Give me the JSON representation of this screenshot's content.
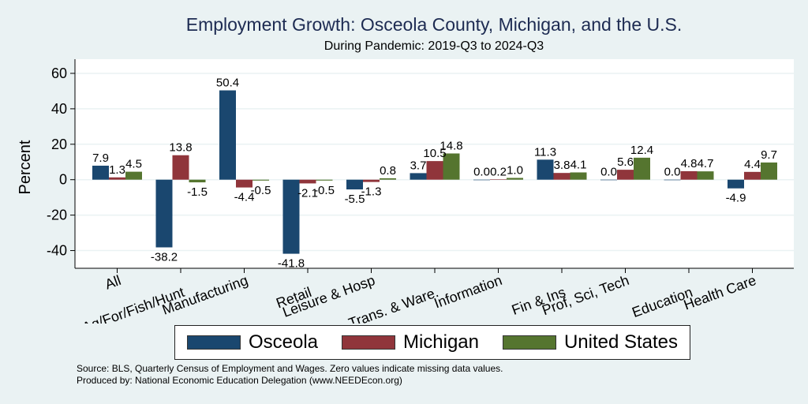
{
  "chart_data": {
    "type": "bar",
    "title": "Employment Growth: Osceola County, Michigan, and the U.S.",
    "subtitle": "During Pandemic: 2019-Q3 to 2024-Q3",
    "ylabel": "Percent",
    "ylim": [
      -50,
      68
    ],
    "yticks": [
      -40,
      -20,
      0,
      20,
      40,
      60
    ],
    "grid": true,
    "legend_position": "bottom",
    "categories": [
      "All",
      "Ag/For/Fish/Hunt",
      "Manufacturing",
      "Retail",
      "Leisure & Hosp",
      "Trans. & Ware.",
      "Information",
      "Fin & Ins",
      "Prof, Sci, Tech",
      "Education",
      "Health Care"
    ],
    "series": [
      {
        "name": "Osceola",
        "color": "#1a476f",
        "values": [
          7.9,
          -38.2,
          50.4,
          -41.8,
          -5.5,
          3.7,
          0.0,
          11.3,
          0.0,
          0.0,
          -4.9
        ]
      },
      {
        "name": "Michigan",
        "color": "#90353b",
        "values": [
          1.3,
          13.8,
          -4.4,
          -2.1,
          -1.3,
          10.5,
          0.2,
          3.8,
          5.6,
          4.8,
          4.4
        ]
      },
      {
        "name": "United States",
        "color": "#55752f",
        "values": [
          4.5,
          -1.5,
          -0.5,
          -0.5,
          0.8,
          14.8,
          1.0,
          4.1,
          12.4,
          4.7,
          9.7
        ]
      }
    ]
  },
  "notes": {
    "source": "Source: BLS, Quarterly Census of Employment and Wages. Zero values indicate missing data values.",
    "produced": "Produced by: National Economic Education Delegation (www.NEEDEcon.org)"
  }
}
